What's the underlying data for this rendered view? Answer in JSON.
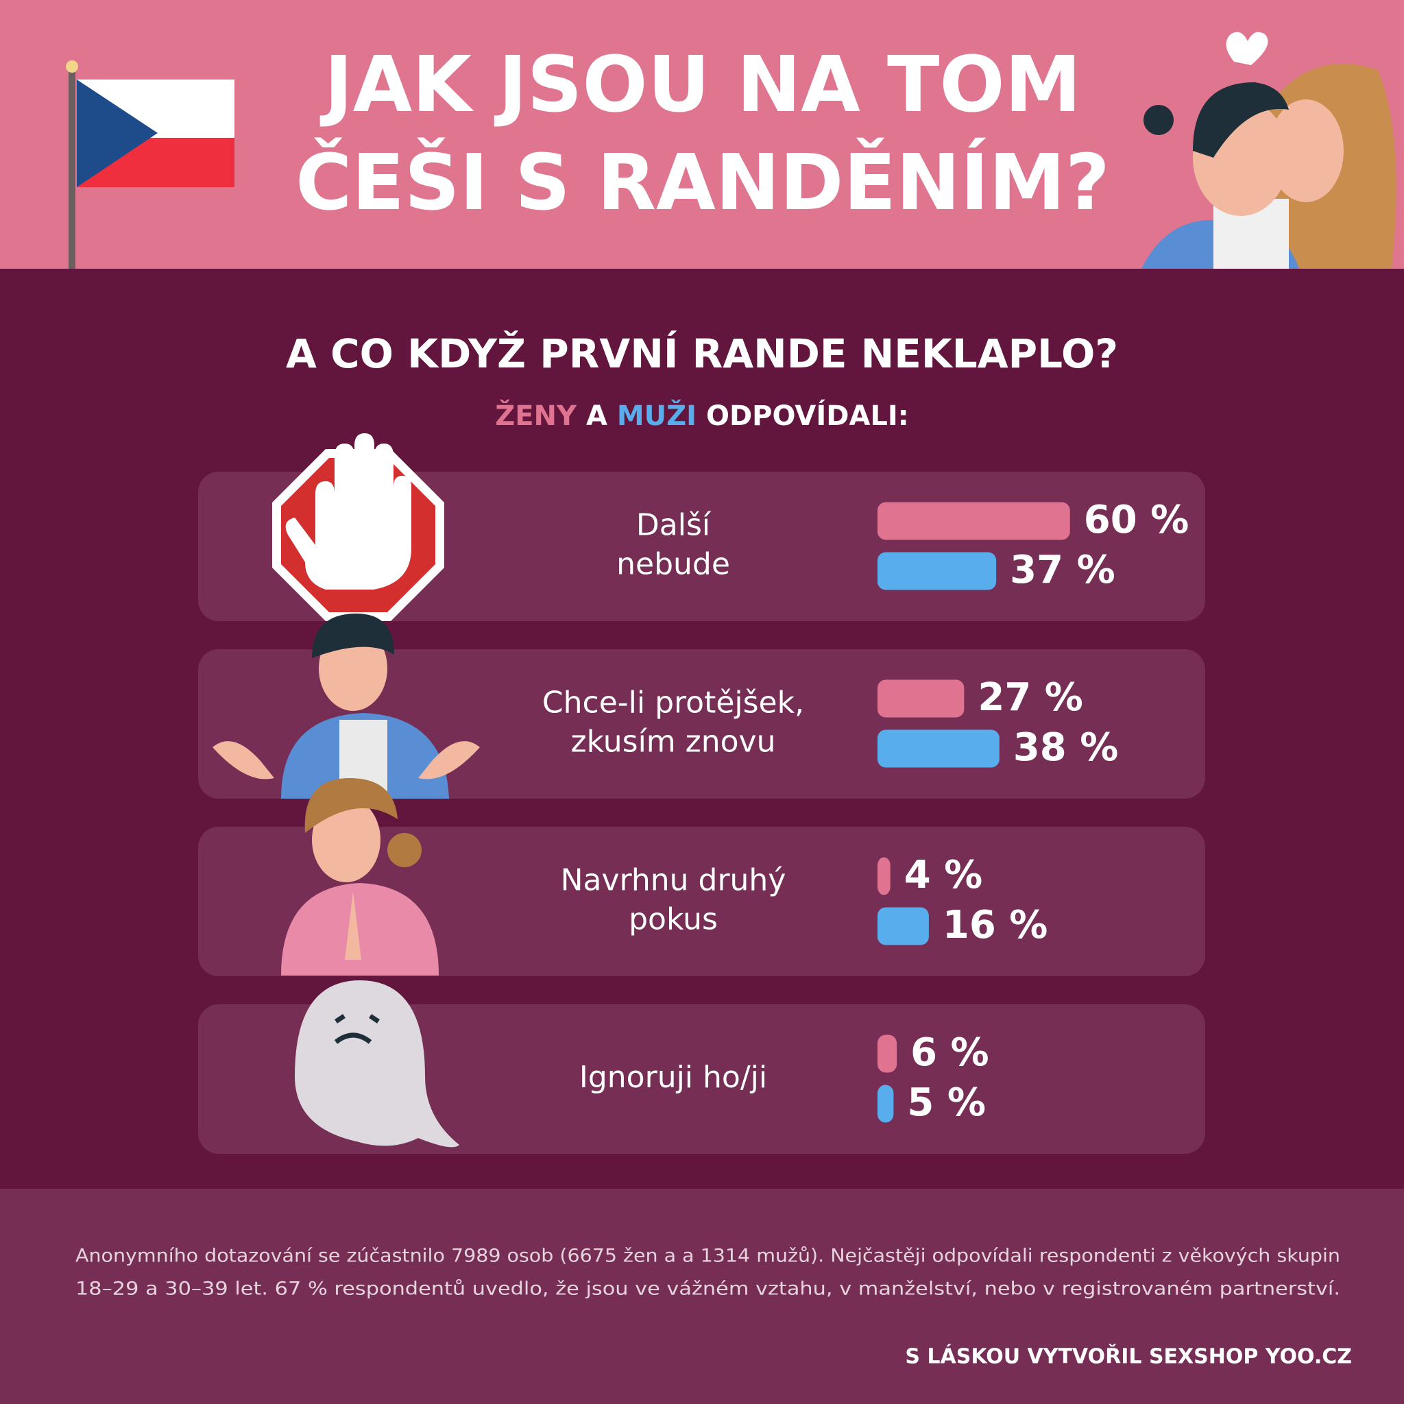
{
  "header": {
    "title_lines": [
      "JAK JSOU NA TOM",
      "ČEŠI S RANDĚNÍM?"
    ]
  },
  "chart_data": {
    "type": "bar",
    "orientation": "horizontal",
    "title": "A CO KDYŽ PRVNÍ RANDE NEKLAPLO?",
    "legend_joiner": "A",
    "legend_suffix": "ODPOVÍDALI:",
    "categories": [
      [
        "Další",
        "nebude"
      ],
      [
        "Chce-li protějšek,",
        "zkusím znovu"
      ],
      [
        "Navrhnu druhý",
        "pokus"
      ],
      [
        "Ignoruji ho/ji"
      ]
    ],
    "series": [
      {
        "name": "ŽENY",
        "color": "#df7390",
        "values": [
          60,
          27,
          4,
          6
        ],
        "value_labels": [
          "60 %",
          "27 %",
          "4 %",
          "6 %"
        ]
      },
      {
        "name": "MUŽI",
        "color": "#58aeed",
        "values": [
          37,
          38,
          16,
          5
        ],
        "value_labels": [
          "37 %",
          "38 %",
          "16 %",
          "5 %"
        ]
      }
    ]
  },
  "footer": {
    "note_lines": [
      "Anonymního dotazování se zúčastnilo 7989 osob (6675 žen a a 1314 mužů). Nejčastěji odpovídali respondenti z věkových skupin",
      "18–29 a 30–39 let. 67 % respondentů uvedlo, že jsou ve vážném vztahu, v manželství, nebo v registrovaném partnerství."
    ],
    "credit": "S LÁSKOU VYTVOŘIL SEXSHOP YOO.CZ"
  }
}
